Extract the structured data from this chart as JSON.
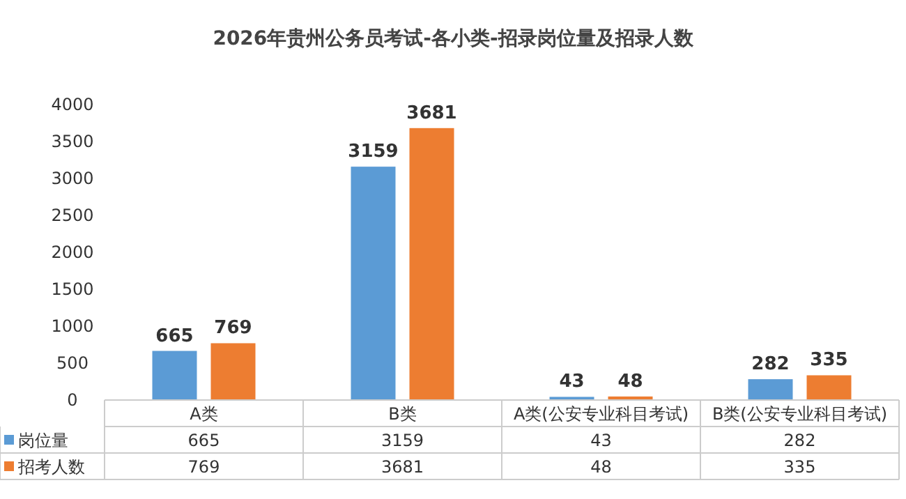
{
  "chart_data": {
    "type": "bar",
    "title": "2026年贵州公务员考试-各小类-招录岗位量及招录人数",
    "categories": [
      "A类",
      "B类",
      "A类(公安专业科目考试)",
      "B类(公安专业科目考试)"
    ],
    "series": [
      {
        "name": "岗位量",
        "color": "#5b9bd5",
        "values": [
          665,
          3159,
          43,
          282
        ]
      },
      {
        "name": "招考人数",
        "color": "#ed7d31",
        "values": [
          769,
          3681,
          48,
          335
        ]
      }
    ],
    "ylim": [
      0,
      4000
    ],
    "yticks": [
      0,
      500,
      1000,
      1500,
      2000,
      2500,
      3000,
      3500,
      4000
    ],
    "data_labels": true,
    "legend": "bottom",
    "grid": false,
    "annotations": [
      "665",
      "3159",
      "43",
      "282",
      "769",
      "3681",
      "48",
      "335"
    ]
  }
}
